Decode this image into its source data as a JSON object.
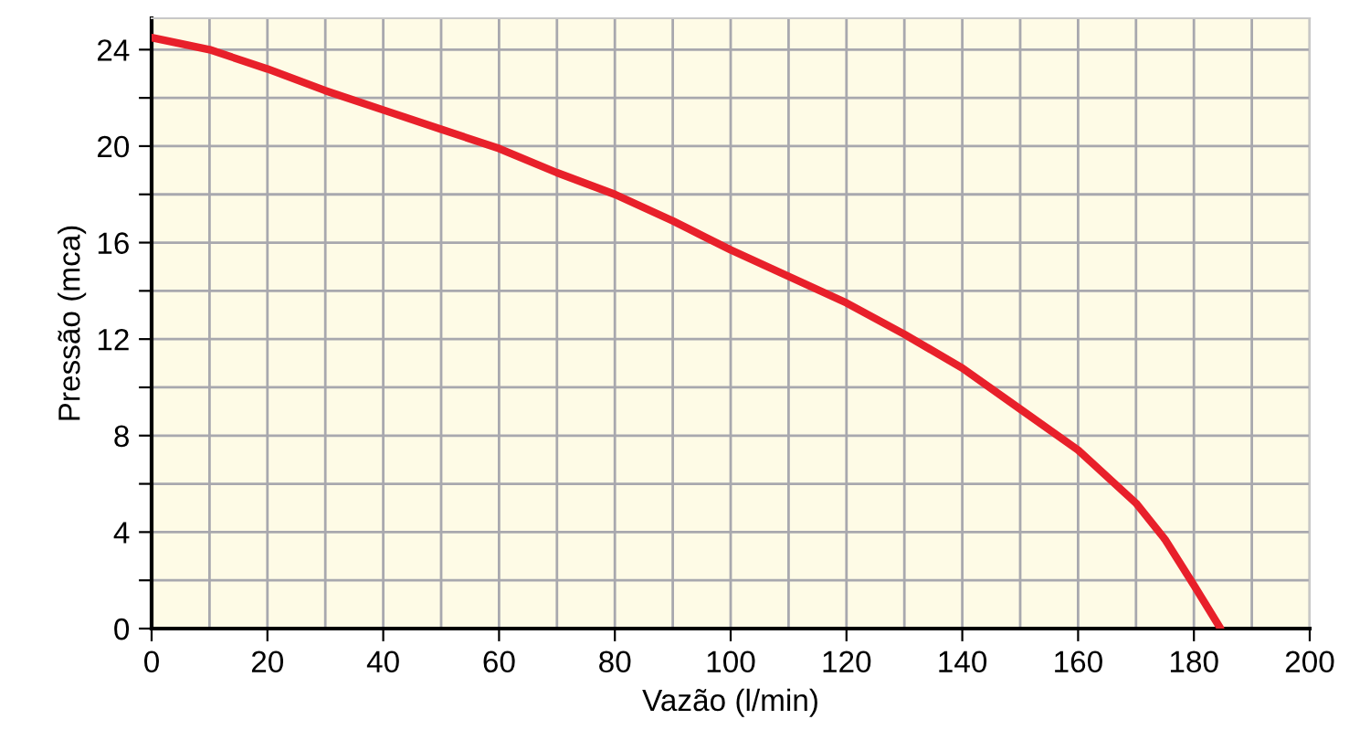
{
  "chart_data": {
    "type": "line",
    "xlabel": "Vazão (l/min)",
    "ylabel": "Pressão (mca)",
    "x": [
      0,
      10,
      20,
      30,
      40,
      50,
      60,
      70,
      80,
      90,
      100,
      110,
      120,
      130,
      140,
      150,
      160,
      170,
      175,
      180,
      184.6
    ],
    "series": [
      {
        "color": "#e8202a",
        "values": [
          24.5,
          24.0,
          23.2,
          22.3,
          21.5,
          20.7,
          19.9,
          18.9,
          18.0,
          16.9,
          15.7,
          14.6,
          13.5,
          12.2,
          10.8,
          9.1,
          7.4,
          5.2,
          3.7,
          1.8,
          0
        ]
      }
    ],
    "xlim": [
      0,
      200
    ],
    "ylim": [
      0,
      25.3
    ],
    "xticks": [
      0,
      20,
      40,
      60,
      80,
      100,
      120,
      140,
      160,
      180,
      200
    ],
    "yticks": [
      0,
      {
        "value": 2,
        "label": null
      },
      4,
      {
        "value": 6,
        "label": null
      },
      8,
      {
        "value": 10,
        "label": null
      },
      12,
      {
        "value": 14,
        "label": null
      },
      16,
      {
        "value": 18,
        "label": null
      },
      20,
      {
        "value": 22,
        "label": null
      },
      24
    ],
    "grid": true,
    "marker": "none",
    "line_style": "solid"
  }
}
